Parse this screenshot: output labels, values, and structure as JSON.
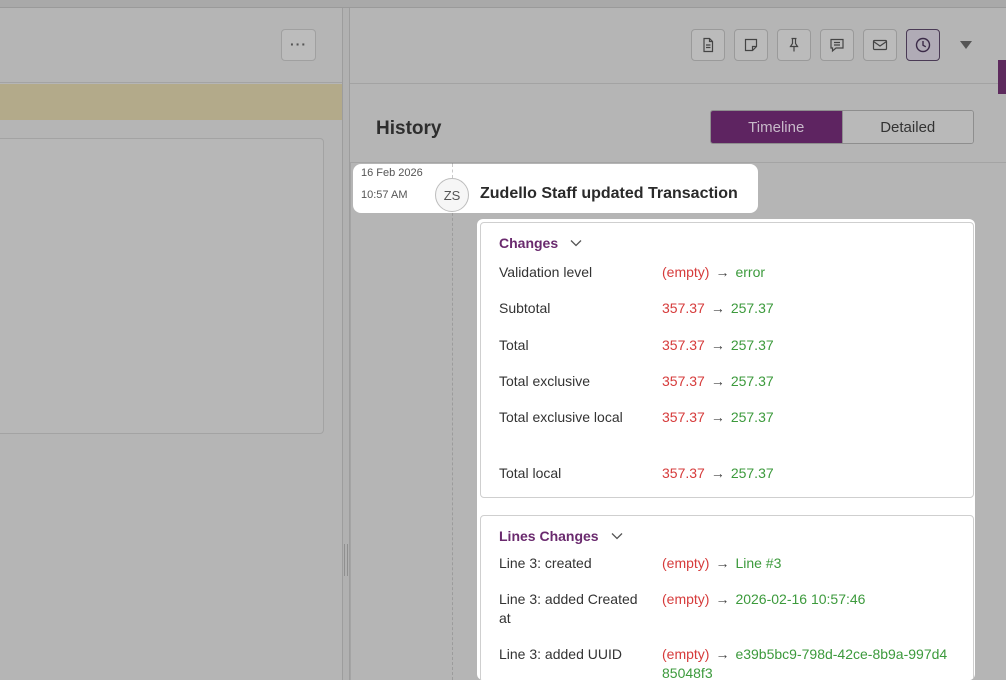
{
  "toolbar": {
    "more_label": "···",
    "buttons": [
      "document-icon",
      "note-icon",
      "pin-icon",
      "comment-icon",
      "mail-icon",
      "clock-icon"
    ],
    "dropdown_icon": "caret-down-icon"
  },
  "history": {
    "title": "History",
    "tabs": [
      "Timeline",
      "Detailed"
    ],
    "active_tab": "Timeline"
  },
  "event": {
    "date": "16 Feb 2026",
    "time": "10:57 AM",
    "avatar": "ZS",
    "title": "Zudello Staff updated Transaction"
  },
  "changes": {
    "title": "Changes",
    "rows": [
      {
        "label": "Validation level",
        "old": "(empty)",
        "new": "error"
      },
      {
        "label": "Subtotal",
        "old": "357.37",
        "new": "257.37"
      },
      {
        "label": "Total",
        "old": "357.37",
        "new": "257.37"
      },
      {
        "label": "Total exclusive local",
        "old": "357.37",
        "new": "257.37"
      },
      {
        "label": "Total local",
        "old": "357.37",
        "new": "257.37"
      }
    ],
    "total_exclusive": {
      "label": "Total exclusive",
      "old": "357.37",
      "new": "257.37"
    }
  },
  "lines_changes": {
    "title": "Lines Changes",
    "rows": [
      {
        "label": "Line 3: created",
        "old": "(empty)",
        "new": "Line #3"
      },
      {
        "label": "Line 3: added Created at",
        "old": "(empty)",
        "new": "2026-02-16 10:57:46"
      },
      {
        "label": "Line 3: added UUID",
        "old": "(empty)",
        "new": "e39b5bc9-798d-42ce-8b9a-997d485048f3"
      }
    ]
  },
  "arrow": "→"
}
